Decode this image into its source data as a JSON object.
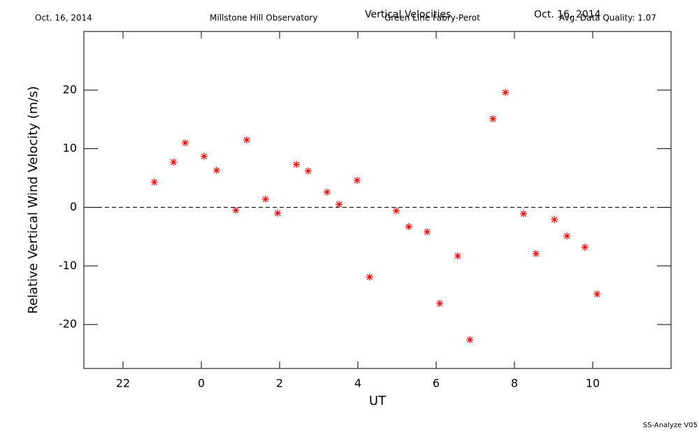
{
  "chart_data": {
    "type": "scatter",
    "title": "Vertical Velocities",
    "subtitle": "Green Line Fabry-Perot",
    "annotations": [
      "Oct. 16, 2014",
      "Millstone Hill Observatory",
      "Oct. 16, 2014",
      "Avg. Data Quality: 1.07",
      "SS-Analyze V05"
    ],
    "x_label": "UT",
    "y_label": "Relative Vertical Wind Velocity (m/s)",
    "color": "#ff0000",
    "hline": 0,
    "xlim": [
      -3,
      12
    ],
    "xticks": [
      {
        "value": -2,
        "label": "22"
      },
      0,
      2,
      4,
      6,
      8,
      10
    ],
    "ylim": [
      -27.5,
      30
    ],
    "yticks": [
      -20,
      -10,
      0,
      10,
      20
    ],
    "x": [
      -1.2,
      -0.71,
      -0.41,
      0.07,
      0.39,
      0.88,
      1.16,
      1.64,
      1.95,
      2.43,
      2.73,
      3.21,
      3.52,
      3.98,
      4.3,
      4.98,
      5.3,
      5.77,
      6.09,
      6.55,
      6.86,
      7.45,
      7.77,
      8.23,
      8.55,
      9.02,
      9.34,
      9.8,
      10.11
    ],
    "values": [
      4.3,
      7.7,
      11.0,
      8.7,
      6.3,
      -0.5,
      11.5,
      1.4,
      -1.0,
      7.3,
      6.2,
      2.6,
      0.5,
      4.6,
      -11.9,
      -0.6,
      -3.3,
      -4.2,
      -16.4,
      -8.3,
      -22.6,
      15.1,
      19.6,
      -1.1,
      -7.9,
      -2.1,
      -4.9,
      -6.8,
      -14.8
    ]
  }
}
